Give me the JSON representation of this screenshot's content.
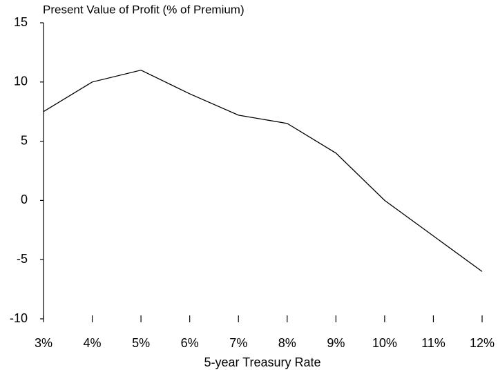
{
  "chart_data": {
    "type": "line",
    "title": "Present Value of Profit  (% of Premium)",
    "x_label": "5-year Treasury Rate",
    "x": [
      3,
      4,
      5,
      6,
      7,
      8,
      9,
      10,
      11,
      12
    ],
    "series": [
      {
        "name": "Present Value of Profit",
        "color": "#000000",
        "values": [
          7.5,
          10,
          11,
          9,
          7.2,
          6.5,
          4,
          0,
          -3,
          -6
        ]
      }
    ],
    "xlim": [
      3,
      12
    ],
    "xticks": [
      {
        "value": 3,
        "label": "3%"
      },
      {
        "value": 4,
        "label": "4%"
      },
      {
        "value": 5,
        "label": "5%"
      },
      {
        "value": 6,
        "label": "6%"
      },
      {
        "value": 7,
        "label": "7%"
      },
      {
        "value": 8,
        "label": "8%"
      },
      {
        "value": 9,
        "label": "9%"
      },
      {
        "value": 10,
        "label": "10%"
      },
      {
        "value": 11,
        "label": "11%"
      },
      {
        "value": 12,
        "label": "12%"
      }
    ],
    "ylim": [
      -10,
      15
    ],
    "yticks": [
      -10,
      -5,
      0,
      5,
      10,
      15
    ]
  }
}
